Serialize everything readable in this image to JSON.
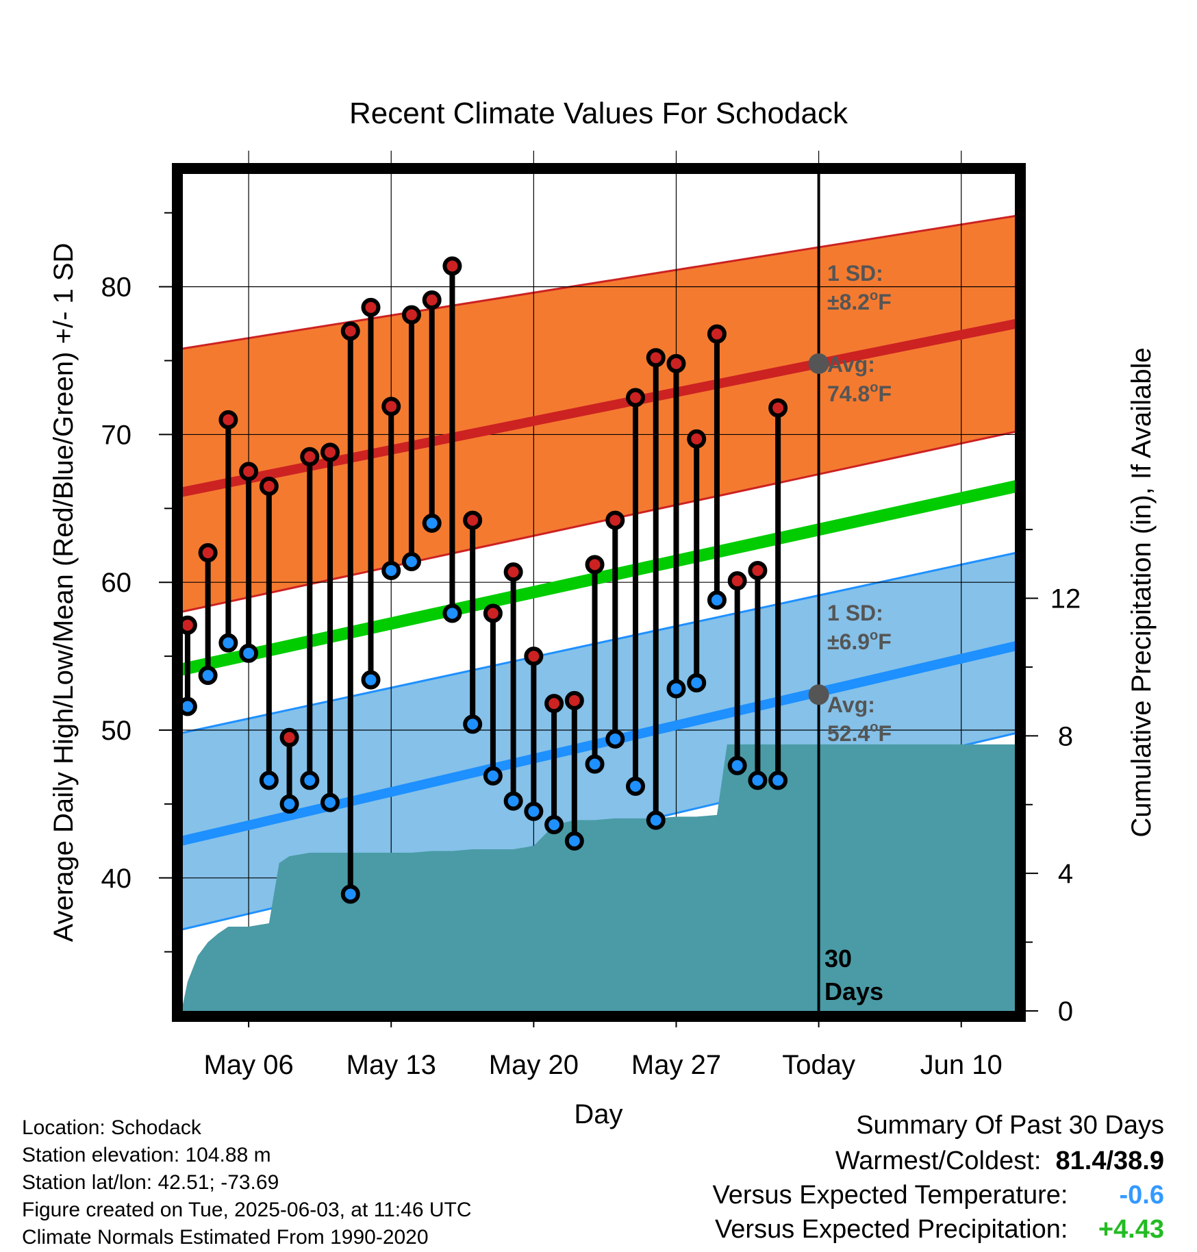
{
  "chart_data": {
    "type": "line",
    "title": "Recent Climate Values For Schodack",
    "xlabel": "Day",
    "ylabel": "Average Daily High/Low/Mean (Red/Blue/Green) +/- 1 SD",
    "y2label": "Cumulative Precipitation (in), If Available",
    "x_tick_labels": [
      "May 06",
      "May 13",
      "May 20",
      "May 27",
      "Today",
      "Jun 10"
    ],
    "x_tick_days": [
      6,
      13,
      20,
      27,
      34,
      41
    ],
    "xlim_days": [
      2.7,
      43.7
    ],
    "ylim": [
      31,
      88
    ],
    "y_ticks": [
      40,
      50,
      60,
      70,
      80
    ],
    "y2lim": [
      0,
      24.5
    ],
    "y2_ticks": [
      0,
      4,
      8,
      12
    ],
    "grid": true,
    "normals": {
      "high_avg": {
        "start": 66.1,
        "end": 77.5,
        "color": "#cc2222"
      },
      "high_band": {
        "lower_start": 58.0,
        "lower_end": 70.2,
        "upper_start": 75.8,
        "upper_end": 84.8,
        "color": "#f47a30"
      },
      "mean": {
        "start": 54.1,
        "end": 66.5,
        "color": "#00cc00"
      },
      "low_avg": {
        "start": 42.5,
        "end": 55.7,
        "color": "#1e90ff"
      },
      "low_band": {
        "lower_start": 36.5,
        "lower_end": 49.8,
        "upper_start": 49.8,
        "upper_end": 62.0,
        "color": "#85c1e9"
      }
    },
    "series": [
      {
        "name": "High",
        "color": "#cc2222",
        "x": [
          3,
          4,
          5,
          6,
          7,
          8,
          9,
          10,
          11,
          12,
          13,
          14,
          15,
          16,
          17,
          18,
          19,
          20,
          21,
          22,
          23,
          24,
          25,
          26,
          27,
          28,
          29,
          30,
          31,
          32,
          33
        ],
        "values": [
          57.1,
          62.0,
          71.0,
          67.5,
          66.5,
          49.5,
          68.5,
          68.8,
          77.0,
          78.6,
          71.9,
          78.1,
          79.1,
          81.4,
          64.2,
          57.9,
          60.7,
          55.0,
          51.8,
          52.0,
          61.2,
          64.2,
          72.5,
          75.2,
          74.8,
          69.7,
          76.8,
          60.1,
          60.8,
          71.8,
          null
        ]
      },
      {
        "name": "Low",
        "color": "#1e90ff",
        "x": [
          3,
          4,
          5,
          6,
          7,
          8,
          9,
          10,
          11,
          12,
          13,
          14,
          15,
          16,
          17,
          18,
          19,
          20,
          21,
          22,
          23,
          24,
          25,
          26,
          27,
          28,
          29,
          30,
          31,
          32,
          33
        ],
        "values": [
          51.6,
          53.7,
          55.9,
          55.2,
          46.6,
          45.0,
          46.6,
          45.1,
          38.9,
          53.4,
          60.8,
          61.4,
          64.0,
          57.9,
          50.4,
          46.9,
          45.2,
          44.5,
          43.6,
          42.5,
          47.7,
          49.4,
          46.2,
          43.9,
          52.8,
          53.2,
          58.8,
          47.6,
          46.6,
          46.6,
          null
        ]
      },
      {
        "name": "Cumulative Precipitation",
        "color": "#4a9ba6",
        "x": [
          2.7,
          3,
          3.5,
          4,
          4.5,
          5,
          6,
          7,
          7.5,
          8,
          8.5,
          9,
          10,
          11,
          12,
          13,
          14,
          15,
          16,
          17,
          18,
          19,
          20,
          21,
          22,
          23,
          24,
          25,
          26,
          27,
          28,
          29,
          29.5,
          30,
          31,
          32,
          33,
          34,
          35,
          40,
          43.7
        ],
        "values": [
          0,
          0.85,
          1.6,
          2.0,
          2.25,
          2.45,
          2.45,
          2.55,
          4.3,
          4.5,
          4.55,
          4.6,
          4.6,
          4.6,
          4.6,
          4.6,
          4.6,
          4.65,
          4.65,
          4.7,
          4.7,
          4.7,
          4.8,
          5.4,
          5.55,
          5.55,
          5.6,
          5.6,
          5.6,
          5.65,
          5.65,
          5.7,
          7.75,
          7.75,
          7.75,
          7.75,
          7.75,
          7.75,
          7.75,
          7.75,
          7.75
        ]
      }
    ],
    "today_marker": {
      "day": 34,
      "high_avg_point": 74.8,
      "low_avg_point": 52.4
    }
  },
  "annotations": {
    "high_sd_label": "1 SD:",
    "high_sd_value": "±8.2",
    "high_sd_unit": "F",
    "high_avg_label": "Avg:",
    "high_avg_value": "74.8",
    "high_avg_unit": "F",
    "low_sd_label": "1 SD:",
    "low_sd_value": "±6.9",
    "low_sd_unit": "F",
    "low_avg_label": "Avg:",
    "low_avg_value": "52.4",
    "low_avg_unit": "F",
    "degree_mark": "o",
    "days_number": "30",
    "days_word": "Days"
  },
  "footer_left": {
    "location": "Location: Schodack",
    "elevation": "Station elevation: 104.88 m",
    "latlon": "Station lat/lon: 42.51; -73.69",
    "created": "Figure created on Tue, 2025-06-03, at 11:46 UTC",
    "normals": "Climate Normals Estimated From 1990-2020"
  },
  "footer_right": {
    "heading": "Summary Of Past 30 Days",
    "warmest_label": "Warmest/Coldest:",
    "warmest_value": "81.4/38.9",
    "temp_label": "Versus Expected Temperature:",
    "temp_value": "-0.6",
    "temp_color": "#3399ff",
    "precip_label": "Versus Expected Precipitation:",
    "precip_value": "+4.43",
    "precip_color": "#22bb22"
  }
}
